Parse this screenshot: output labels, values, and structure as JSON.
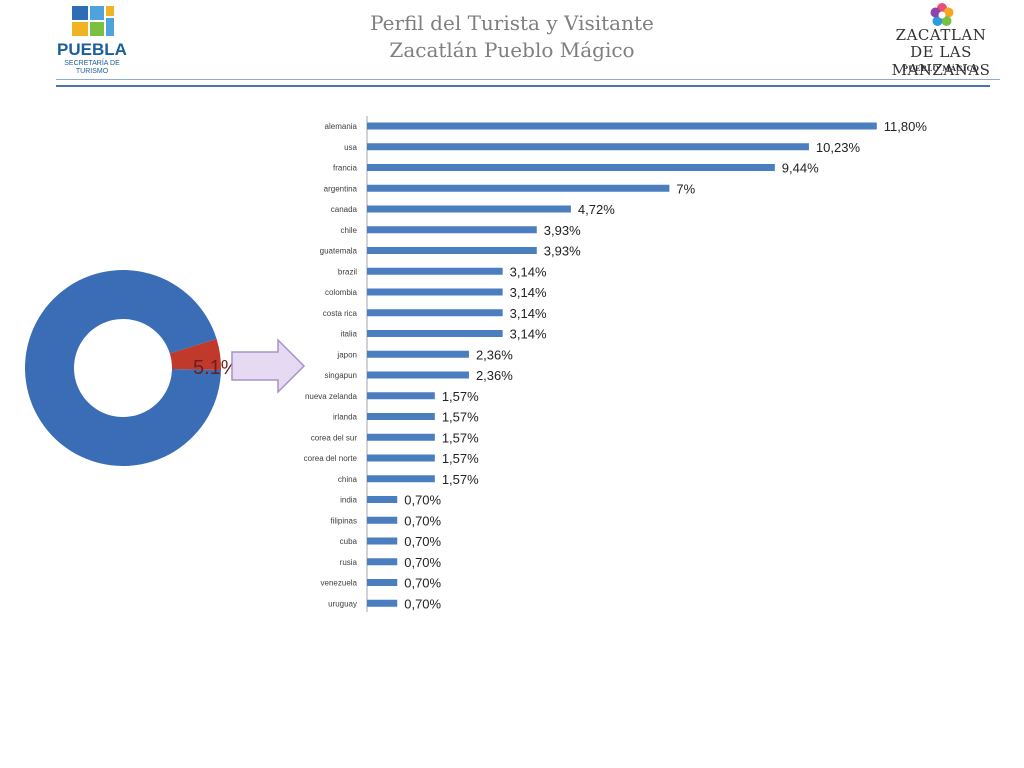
{
  "header": {
    "title_line1": "Perfil del Turista y Visitante",
    "title_line2": "Zacatlán Pueblo Mágico"
  },
  "logo_left": {
    "name": "PUEBLA",
    "subtitle_line1": "SECRETARÍA DE",
    "subtitle_line2": "TURISMO"
  },
  "logo_right": {
    "line1": "ZACATLAN",
    "line2": "DE LAS MANZANAS",
    "line3": "PUEBLO MÁGICO"
  },
  "donut": {
    "highlight_label": "5.1%",
    "highlight_fraction": 0.051,
    "colors": {
      "main": "#3a6db5",
      "highlight": "#c0392b"
    }
  },
  "chart_data": {
    "type": "bar",
    "orientation": "horizontal",
    "categories": [
      "alemania",
      "usa",
      "francia",
      "argentina",
      "canada",
      "chile",
      "guatemala",
      "brazil",
      "colombia",
      "costa rica",
      "italia",
      "japon",
      "singapun",
      "nueva zelanda",
      "irlanda",
      "corea del sur",
      "corea del norte",
      "china",
      "india",
      "filipinas",
      "cuba",
      "rusia",
      "venezuela",
      "uruguay"
    ],
    "values": [
      11.8,
      10.23,
      9.44,
      7,
      4.72,
      3.93,
      3.93,
      3.14,
      3.14,
      3.14,
      3.14,
      2.36,
      2.36,
      1.57,
      1.57,
      1.57,
      1.57,
      1.57,
      0.7,
      0.7,
      0.7,
      0.7,
      0.7,
      0.7
    ],
    "labels": [
      "11,80%",
      "10,23%",
      "9,44%",
      "7%",
      "4,72%",
      "3,93%",
      "3,93%",
      "3,14%",
      "3,14%",
      "3,14%",
      "3,14%",
      "2,36%",
      "2,36%",
      "1,57%",
      "1,57%",
      "1,57%",
      "1,57%",
      "1,57%",
      "0,70%",
      "0,70%",
      "0,70%",
      "0,70%",
      "0,70%",
      "0,70%"
    ],
    "xlim": [
      0,
      12
    ],
    "grid": false,
    "legend": "none",
    "bar_color": "#4a7ebf"
  }
}
